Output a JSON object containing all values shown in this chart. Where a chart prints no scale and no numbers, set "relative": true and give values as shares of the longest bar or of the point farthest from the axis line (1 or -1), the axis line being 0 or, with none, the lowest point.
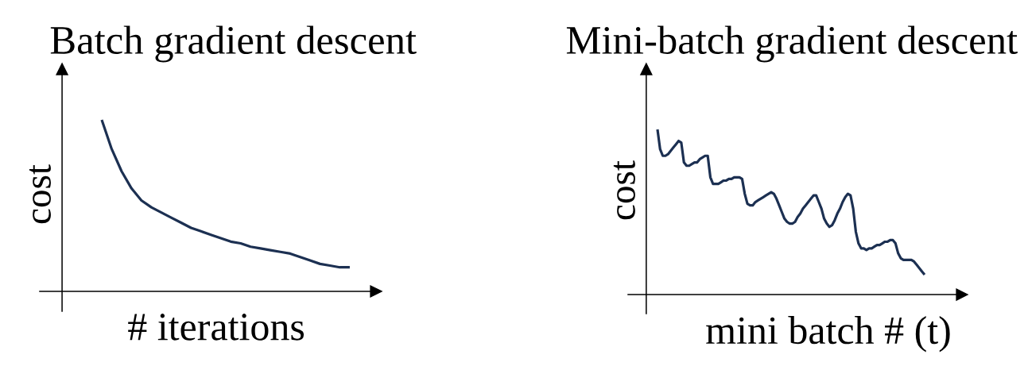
{
  "chart_data": [
    {
      "type": "line",
      "title": "Batch gradient descent",
      "xlabel": "# iterations",
      "ylabel": "cost",
      "relative": true,
      "line_style": "solid",
      "categories": [
        null,
        null,
        null,
        null,
        null,
        null,
        null,
        null,
        null,
        null,
        null,
        null,
        null,
        null,
        null,
        null,
        null,
        null,
        null,
        null,
        null,
        null,
        null,
        null,
        null,
        null
      ],
      "series": [
        {
          "color": "#1c3052",
          "values": [
            1.0,
            0.83,
            0.7,
            0.6,
            0.53,
            0.49,
            0.46,
            0.43,
            0.4,
            0.37,
            0.35,
            0.33,
            0.31,
            0.29,
            0.28,
            0.26,
            0.25,
            0.24,
            0.23,
            0.22,
            0.2,
            0.18,
            0.16,
            0.15,
            0.14,
            0.14
          ]
        }
      ]
    },
    {
      "type": "line",
      "title": "Mini-batch gradient descent",
      "xlabel": "mini batch # (t)",
      "ylabel": "cost",
      "relative": true,
      "line_style": "solid",
      "categories": [
        null,
        null,
        null,
        null,
        null,
        null,
        null,
        null,
        null,
        null,
        null,
        null,
        null,
        null,
        null,
        null,
        null,
        null,
        null,
        null,
        null,
        null,
        null,
        null,
        null,
        null,
        null,
        null,
        null,
        null,
        null,
        null,
        null,
        null,
        null,
        null,
        null,
        null,
        null,
        null,
        null,
        null,
        null,
        null,
        null,
        null,
        null,
        null,
        null,
        null,
        null,
        null,
        null,
        null,
        null,
        null,
        null,
        null,
        null,
        null,
        null,
        null,
        null,
        null,
        null,
        null,
        null,
        null,
        null,
        null,
        null,
        null,
        null,
        null,
        null,
        null,
        null,
        null,
        null,
        null,
        null,
        null,
        null,
        null,
        null,
        null,
        null,
        null,
        null,
        null,
        null,
        null,
        null,
        null,
        null,
        null,
        null,
        null,
        null,
        null,
        null,
        null
      ],
      "series": [
        {
          "color": "#1c3052",
          "values": [
            1.0,
            0.88,
            0.84,
            0.84,
            0.85,
            0.87,
            0.89,
            0.91,
            0.93,
            0.92,
            0.8,
            0.78,
            0.78,
            0.79,
            0.8,
            0.8,
            0.82,
            0.83,
            0.84,
            0.84,
            0.71,
            0.67,
            0.67,
            0.67,
            0.68,
            0.69,
            0.69,
            0.7,
            0.7,
            0.71,
            0.71,
            0.71,
            0.7,
            0.61,
            0.55,
            0.54,
            0.54,
            0.56,
            0.57,
            0.58,
            0.59,
            0.6,
            0.61,
            0.62,
            0.61,
            0.58,
            0.54,
            0.5,
            0.46,
            0.44,
            0.43,
            0.43,
            0.44,
            0.47,
            0.49,
            0.52,
            0.54,
            0.56,
            0.58,
            0.6,
            0.6,
            0.56,
            0.52,
            0.46,
            0.43,
            0.41,
            0.42,
            0.45,
            0.49,
            0.52,
            0.56,
            0.59,
            0.61,
            0.6,
            0.52,
            0.38,
            0.31,
            0.28,
            0.28,
            0.27,
            0.28,
            0.28,
            0.29,
            0.3,
            0.3,
            0.31,
            0.32,
            0.32,
            0.33,
            0.33,
            0.31,
            0.25,
            0.22,
            0.21,
            0.21,
            0.21,
            0.21,
            0.2,
            0.18,
            0.16,
            0.14,
            0.12
          ]
        }
      ]
    }
  ]
}
